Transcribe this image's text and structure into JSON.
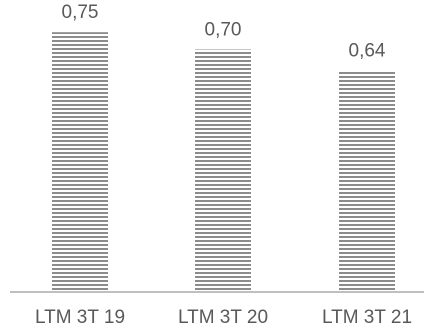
{
  "chart_data": {
    "type": "bar",
    "title": "",
    "xlabel": "",
    "ylabel": "",
    "categories": [
      "LTM 3T 19",
      "LTM 3T 20",
      "LTM 3T 21"
    ],
    "values": [
      0.75,
      0.7,
      0.64
    ],
    "data_labels": [
      "0,75",
      "0,70",
      "0,64"
    ],
    "ylim": [
      0,
      0.84
    ],
    "grid": false,
    "legend": "none",
    "bar_fill": "horizontal-stripes",
    "colors": {
      "bar_stripe": "#8c8c8c",
      "bar_background": "#ffffff",
      "axis_line": "#bfbfbf",
      "text": "#595959"
    }
  }
}
